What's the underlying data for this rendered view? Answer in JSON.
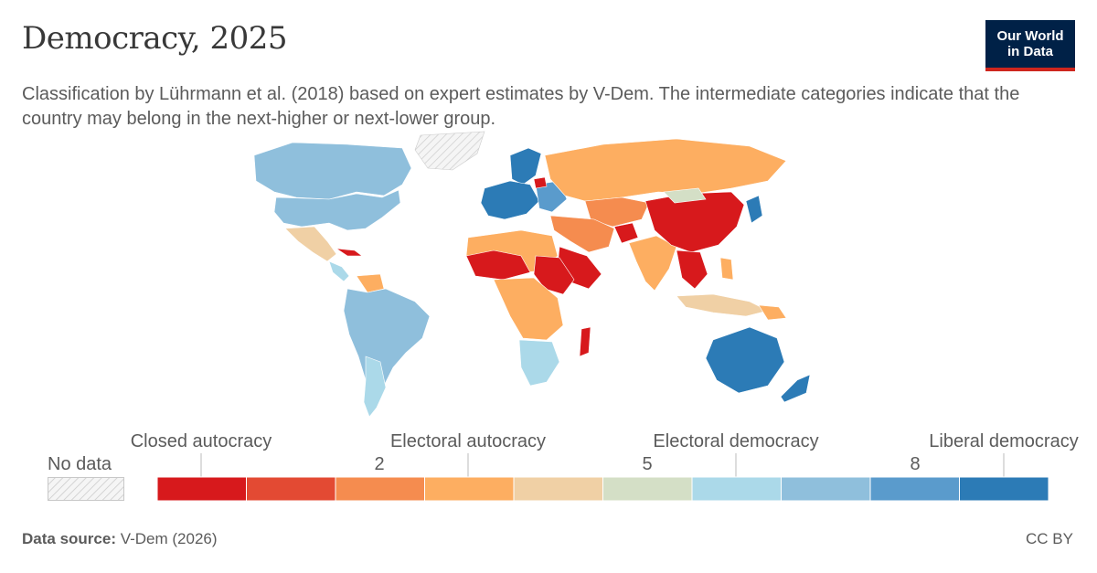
{
  "header": {
    "title": "Democracy, 2025",
    "subtitle": "Classification by Lührmann et al. (2018) based on expert estimates by V-Dem. The intermediate categories indicate that the country may belong in the next-higher or next-lower group.",
    "logo_line1": "Our World",
    "logo_line2": "in Data"
  },
  "legend": {
    "no_data_label": "No data",
    "categories": [
      {
        "label": "Closed autocracy"
      },
      {
        "label": "Electoral autocracy"
      },
      {
        "label": "Electoral democracy"
      },
      {
        "label": "Liberal democracy"
      }
    ],
    "ticks": [
      "2",
      "5",
      "8"
    ],
    "bins": [
      "#d7191c",
      "#e34a33",
      "#f58c4f",
      "#fdae61",
      "#f0d0a5",
      "#d4dfc6",
      "#abd9e9",
      "#8fbfdc",
      "#5a9bcc",
      "#2c7bb6"
    ]
  },
  "colors": {
    "no_data": "#eeeeee",
    "closed_autocracy": "#d7191c",
    "electoral_autocracy": "#fdae61",
    "electoral_democracy": "#abd9e9",
    "liberal_democracy": "#2c7bb6"
  },
  "footer": {
    "source_label": "Data source:",
    "source_value": "V-Dem (2026)",
    "license": "CC BY"
  }
}
